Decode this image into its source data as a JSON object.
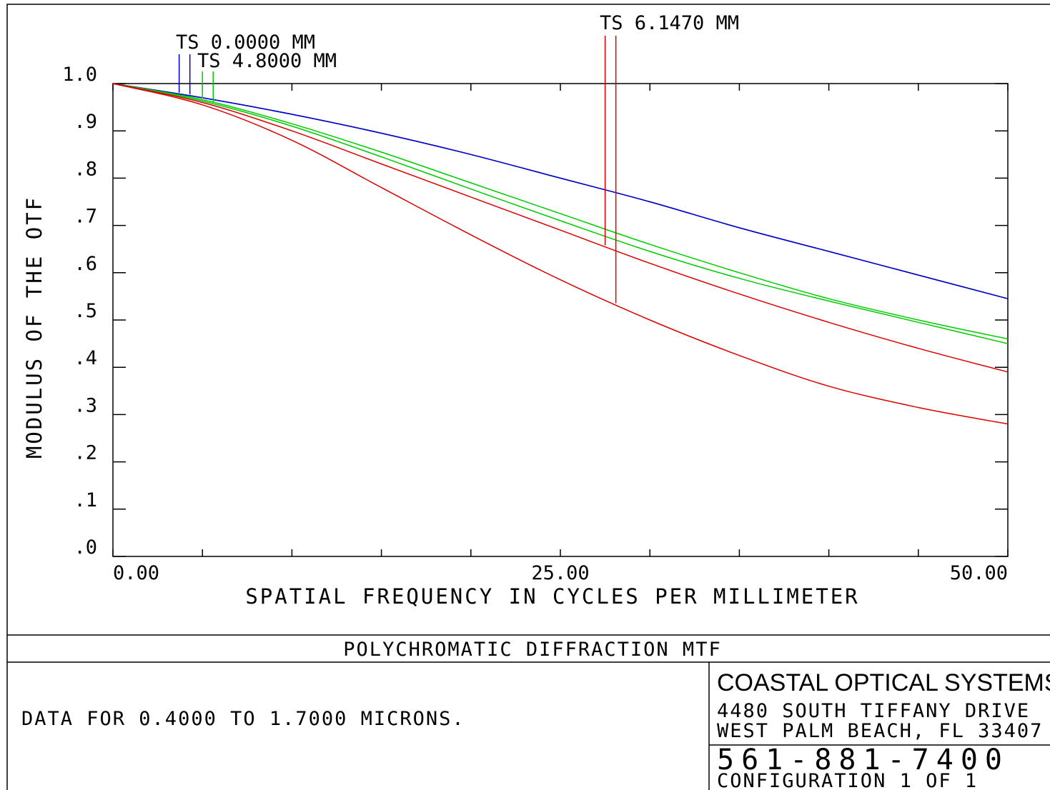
{
  "chart_data": {
    "type": "line",
    "title": "POLYCHROMATIC DIFFRACTION MTF",
    "xlabel": "SPATIAL FREQUENCY IN CYCLES PER MILLIMETER",
    "ylabel": "MODULUS OF THE OTF",
    "xlim": [
      0,
      50
    ],
    "ylim": [
      0,
      1
    ],
    "x_ticks": [
      0,
      5,
      10,
      15,
      20,
      25,
      30,
      35,
      40,
      45,
      50
    ],
    "x_tick_labels": [
      {
        "value": 0,
        "label": "0.00"
      },
      {
        "value": 25,
        "label": "25.00"
      },
      {
        "value": 50,
        "label": "50.00"
      }
    ],
    "y_tick_labels": [
      {
        "value": 1.0,
        "label": "1.0"
      },
      {
        "value": 0.9,
        "label": ".9"
      },
      {
        "value": 0.8,
        "label": ".8"
      },
      {
        "value": 0.7,
        "label": ".7"
      },
      {
        "value": 0.6,
        "label": ".6"
      },
      {
        "value": 0.5,
        "label": ".5"
      },
      {
        "value": 0.4,
        "label": ".4"
      },
      {
        "value": 0.3,
        "label": ".3"
      },
      {
        "value": 0.2,
        "label": ".2"
      },
      {
        "value": 0.1,
        "label": ".1"
      },
      {
        "value": 0.0,
        "label": ".0"
      }
    ],
    "grid": false,
    "x": [
      0,
      5,
      10,
      15,
      20,
      25,
      30,
      35,
      40,
      45,
      50
    ],
    "series": [
      {
        "field": "TS 0.0000 MM",
        "color": "#0000cc",
        "values": [
          1.0,
          0.97,
          0.935,
          0.895,
          0.85,
          0.8,
          0.75,
          0.695,
          0.645,
          0.595,
          0.545
        ]
      },
      {
        "field": "TS 0.0000 MM",
        "color": "#0000cc",
        "values": [
          1.0,
          0.97,
          0.935,
          0.895,
          0.85,
          0.8,
          0.75,
          0.695,
          0.645,
          0.595,
          0.545
        ]
      },
      {
        "field": "TS 4.8000 MM",
        "color": "#00cc00",
        "values": [
          1.0,
          0.966,
          0.915,
          0.855,
          0.79,
          0.725,
          0.66,
          0.6,
          0.545,
          0.5,
          0.46
        ]
      },
      {
        "field": "TS 4.8000 MM",
        "color": "#00cc00",
        "values": [
          1.0,
          0.963,
          0.91,
          0.845,
          0.777,
          0.71,
          0.645,
          0.588,
          0.54,
          0.495,
          0.45
        ]
      },
      {
        "field": "TS 6.1470 MM",
        "color": "#dd0000",
        "values": [
          1.0,
          0.96,
          0.9,
          0.83,
          0.76,
          0.69,
          0.62,
          0.555,
          0.495,
          0.44,
          0.39
        ]
      },
      {
        "field": "TS 6.1470 MM",
        "color": "#dd0000",
        "values": [
          1.0,
          0.955,
          0.88,
          0.78,
          0.68,
          0.585,
          0.5,
          0.425,
          0.36,
          0.315,
          0.28
        ]
      }
    ],
    "legend_markers": [
      {
        "label": "TS 0.0000 MM",
        "color": "#0000cc",
        "x": [
          3.7,
          4.3
        ]
      },
      {
        "label": "TS 4.8000 MM",
        "color": "#00cc00",
        "x": [
          5.0,
          5.6
        ]
      },
      {
        "label": "TS 6.1470 MM",
        "color": "#dd0000",
        "x": [
          27.5,
          28.1
        ]
      }
    ]
  },
  "footer": {
    "data_range": "DATA FOR 0.4000 TO 1.7000 MICRONS.",
    "company_name": "COASTAL OPTICAL SYSTEMS, INC.",
    "address_line1": "4480 SOUTH TIFFANY DRIVE",
    "address_line2": "WEST PALM BEACH, FL  33407",
    "phone": "561-881-7400",
    "configuration": "CONFIGURATION 1 OF 1"
  },
  "colors": {
    "frame": "#000000",
    "blue": "#0000cc",
    "green": "#00cc00",
    "red": "#dd0000"
  }
}
